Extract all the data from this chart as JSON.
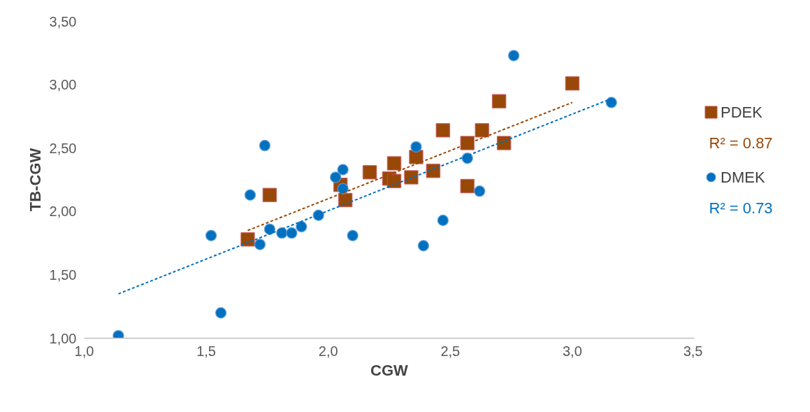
{
  "chart_data": {
    "type": "scatter",
    "xlabel": "CGW",
    "ylabel": "TB-CGW",
    "xlim": [
      1.0,
      3.5
    ],
    "ylim": [
      1.0,
      3.5
    ],
    "xticks": [
      {
        "value": 1.0,
        "label": "1,0"
      },
      {
        "value": 1.5,
        "label": "1,5"
      },
      {
        "value": 2.0,
        "label": "2,0"
      },
      {
        "value": 2.5,
        "label": "2,5"
      },
      {
        "value": 3.0,
        "label": "3,0"
      },
      {
        "value": 3.5,
        "label": "3,5"
      }
    ],
    "yticks": [
      {
        "value": 1.0,
        "label": "1,00"
      },
      {
        "value": 1.5,
        "label": "1,50"
      },
      {
        "value": 2.0,
        "label": "2,00"
      },
      {
        "value": 2.5,
        "label": "2,50"
      },
      {
        "value": 3.0,
        "label": "3,00"
      },
      {
        "value": 3.5,
        "label": "3,50"
      }
    ],
    "grid": false,
    "legend": "right",
    "series": [
      {
        "name": "PDEK",
        "color": "#984807",
        "marker": "square",
        "x": [
          1.67,
          1.76,
          2.05,
          2.07,
          2.17,
          2.25,
          2.27,
          2.27,
          2.34,
          2.36,
          2.43,
          2.47,
          2.57,
          2.57,
          2.63,
          2.7,
          2.72,
          3.0
        ],
        "values": [
          1.78,
          2.13,
          2.21,
          2.09,
          2.31,
          2.26,
          2.38,
          2.24,
          2.27,
          2.43,
          2.32,
          2.64,
          2.54,
          2.2,
          2.64,
          2.87,
          2.54,
          3.01
        ]
      },
      {
        "name": "DMEK",
        "color": "#0070c0",
        "marker": "circle",
        "x": [
          1.14,
          1.52,
          1.56,
          1.68,
          1.72,
          1.74,
          1.76,
          1.81,
          1.85,
          1.89,
          1.96,
          2.03,
          2.06,
          2.06,
          2.1,
          2.36,
          2.39,
          2.47,
          2.57,
          2.62,
          2.76,
          3.16
        ],
        "values": [
          1.02,
          1.81,
          1.2,
          2.13,
          1.74,
          2.52,
          1.86,
          1.83,
          1.83,
          1.88,
          1.97,
          2.27,
          2.33,
          2.18,
          1.81,
          2.51,
          1.73,
          1.93,
          2.42,
          2.16,
          3.23,
          2.86
        ]
      },
      {
        "type": "line",
        "color": "#984807",
        "line_style": "dashed",
        "x": [
          1.67,
          3.0
        ],
        "values": [
          1.85,
          2.86
        ]
      },
      {
        "type": "line",
        "color": "#0070c0",
        "line_style": "dashed",
        "x": [
          1.14,
          3.16
        ],
        "values": [
          1.35,
          2.89
        ]
      }
    ],
    "annotations": [
      "R² = 0.87",
      "R² = 0.73"
    ]
  }
}
